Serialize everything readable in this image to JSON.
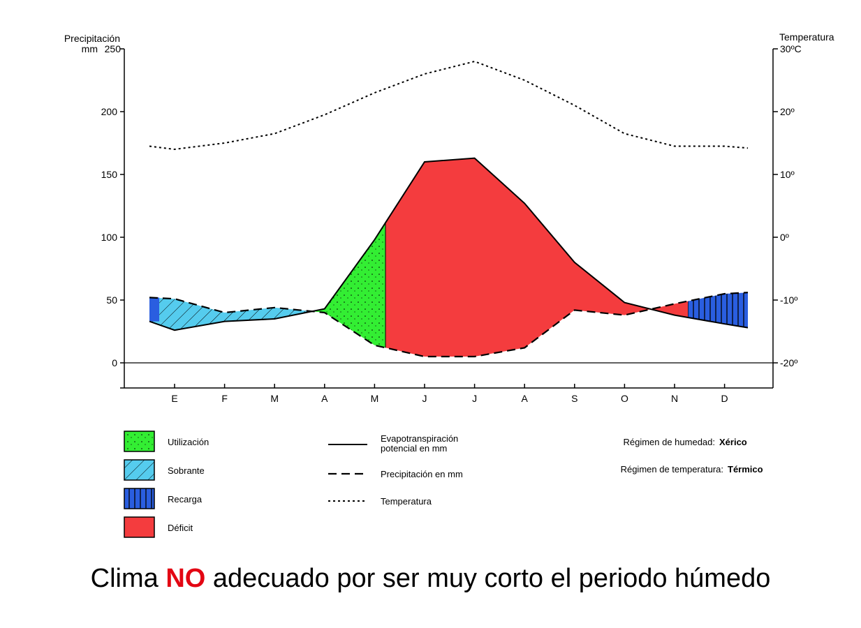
{
  "chart_data": {
    "type": "area",
    "months": [
      "E",
      "F",
      "M",
      "A",
      "M",
      "J",
      "J",
      "A",
      "S",
      "O",
      "N",
      "D"
    ],
    "left_axis": {
      "title_line1": "Precipitación",
      "title_line2": "mm",
      "ticks": [
        0,
        50,
        100,
        150,
        200,
        250
      ],
      "range": [
        -20,
        250
      ]
    },
    "right_axis": {
      "title": "Temperatura",
      "ticks": [
        "-20º",
        "-10º",
        "0º",
        "10º",
        "20º",
        "30ºC"
      ],
      "values": [
        -20,
        -10,
        0,
        10,
        20,
        30
      ]
    },
    "series": [
      {
        "name": "Evapotranspiración potencial en mm",
        "style": "solid",
        "values": [
          26,
          33,
          35,
          43,
          98,
          160,
          163,
          127,
          80,
          48,
          38,
          31
        ]
      },
      {
        "name": "Precipitación en mm",
        "style": "dashed",
        "values": [
          51,
          40,
          44,
          40,
          14,
          5,
          5,
          12,
          42,
          38,
          47,
          55
        ]
      },
      {
        "name": "Temperatura",
        "style": "dotted",
        "unit": "ºC",
        "values": [
          14,
          15,
          16.5,
          19.5,
          23,
          26,
          28,
          25,
          21,
          16.5,
          14.5,
          14.5
        ]
      }
    ],
    "zones": [
      {
        "name": "Sobrante",
        "color": "#55ccee",
        "months": "E–A"
      },
      {
        "name": "Utilización",
        "color": "#33ee33",
        "months": "A–M"
      },
      {
        "name": "Déficit",
        "color": "#f43c3e",
        "months": "M–N"
      },
      {
        "name": "Recarga",
        "color": "#2a5ee0",
        "months": "N–D"
      }
    ]
  },
  "legend": {
    "areas": [
      {
        "label": "Utilización",
        "color": "#33ee33"
      },
      {
        "label": "Sobrante",
        "color": "#55ccee"
      },
      {
        "label": "Recarga",
        "color": "#2a5ee0"
      },
      {
        "label": "Déficit",
        "color": "#f43c3e"
      }
    ],
    "lines": [
      {
        "line1": "Evapotranspiración",
        "line2": "potencial en mm"
      },
      {
        "line1": "Precipitación en mm",
        "line2": ""
      },
      {
        "line1": "Temperatura",
        "line2": ""
      }
    ],
    "regimes": {
      "humidity_label": "Régimen de humedad:",
      "humidity_value": "Xérico",
      "temperature_label": "Régimen de temperatura:",
      "temperature_value": "Térmico"
    }
  },
  "caption": {
    "before": "Clima",
    "highlight": "NO",
    "after": "adecuado por ser muy corto el periodo húmedo"
  }
}
